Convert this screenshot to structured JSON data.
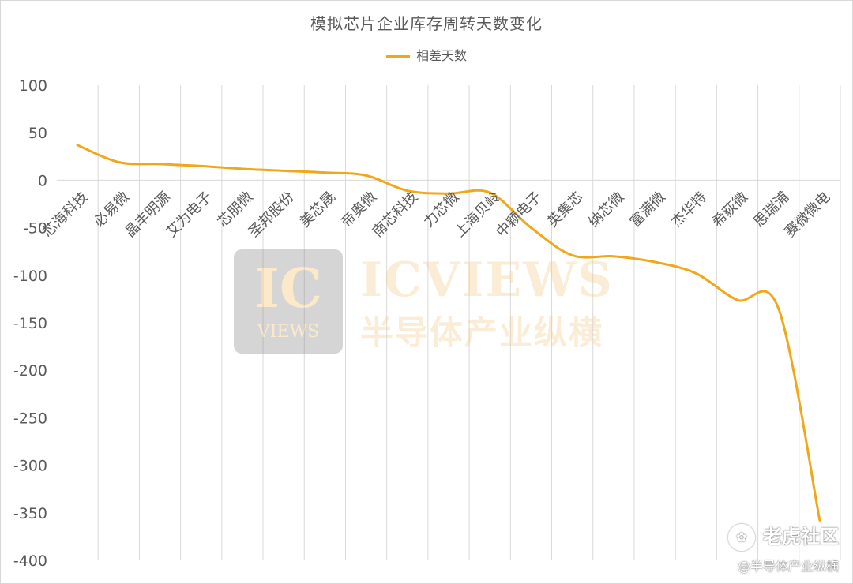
{
  "chart_data": {
    "type": "line",
    "title": "模拟芯片企业库存周转天数变化",
    "categories": [
      "芯海科技",
      "必易微",
      "晶丰明源",
      "艾为电子",
      "芯朋微",
      "圣邦股份",
      "美芯晟",
      "帝奥微",
      "南芯科技",
      "力芯微",
      "上海贝岭",
      "中颖电子",
      "英集芯",
      "纳芯微",
      "富满微",
      "杰华特",
      "希荻微",
      "思瑞浦",
      "赛微微电"
    ],
    "series": [
      {
        "name": "相差天数",
        "color": "#f2a71b",
        "values": [
          37,
          19,
          17,
          15,
          12,
          10,
          8,
          5,
          -11,
          -14,
          -13,
          -50,
          -79,
          -80,
          -86,
          -98,
          -126,
          -135,
          -358
        ]
      }
    ],
    "ylim": [
      -400,
      100
    ],
    "yticks": [
      "100",
      "50",
      "0",
      "-50",
      "-100",
      "-150",
      "-200",
      "-250",
      "-300",
      "-350",
      "-400"
    ],
    "grid": "vertical",
    "legend": "top-center",
    "smooth": true
  },
  "watermark": {
    "logo_big": "IC",
    "logo_small": "VIEWS",
    "brand": "ICVIEWS",
    "brand_cn": "半导体产业纵横",
    "site": "老虎社区",
    "handle": "@半导体产业纵横"
  }
}
